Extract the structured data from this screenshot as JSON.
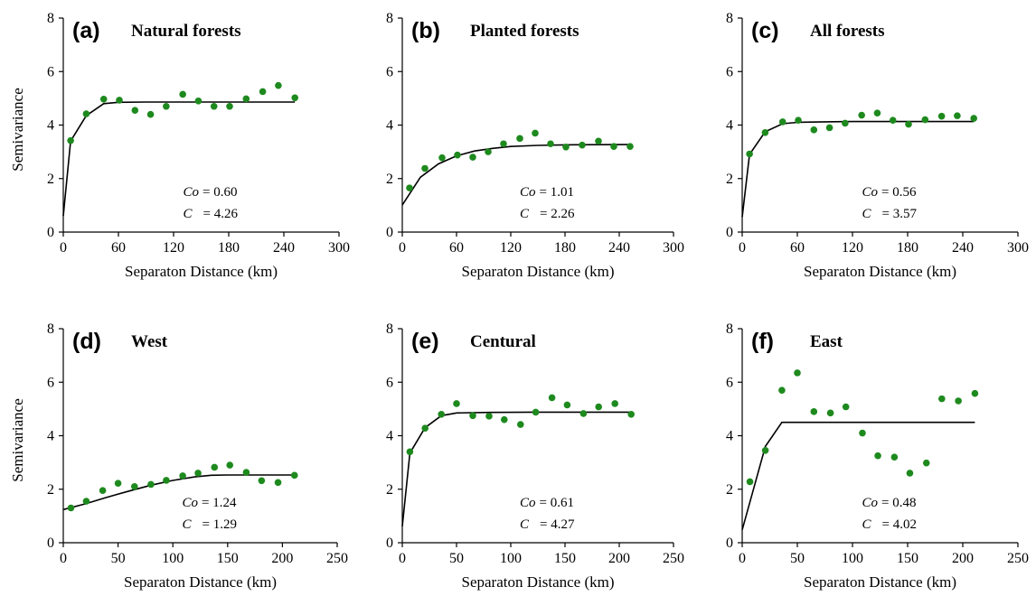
{
  "colors": {
    "points": "#1e8a1e",
    "line": "#000000"
  },
  "chart_data": [
    {
      "type": "scatter",
      "panel_letter": "(a)",
      "title": "Natural forests",
      "xlabel": "Separaton Distance (km)",
      "ylabel": "Semivariance",
      "xlim": [
        0,
        300
      ],
      "ylim": [
        0,
        8
      ],
      "x_ticks": [
        0,
        60,
        120,
        180,
        240,
        300
      ],
      "y_ticks": [
        0,
        2,
        4,
        6,
        8
      ],
      "grid": false,
      "points": {
        "x": [
          8,
          25,
          44,
          61,
          78,
          95,
          112,
          130,
          147,
          164,
          181,
          199,
          217,
          234,
          252
        ],
        "y": [
          3.42,
          4.42,
          4.97,
          4.93,
          4.55,
          4.4,
          4.7,
          5.15,
          4.9,
          4.7,
          4.7,
          4.98,
          5.25,
          5.48,
          5.02
        ]
      },
      "fit_line": {
        "x": [
          0,
          8,
          25,
          44,
          60,
          90,
          120,
          180,
          252
        ],
        "y": [
          0.6,
          3.4,
          4.35,
          4.8,
          4.85,
          4.86,
          4.86,
          4.86,
          4.86
        ]
      },
      "annotation": {
        "co_label": "Co",
        "co_value": "= 0.60",
        "c_label": "C",
        "c_value": "= 4.26"
      }
    },
    {
      "type": "scatter",
      "panel_letter": "(b)",
      "title": "Planted forests",
      "xlabel": "Separaton Distance (km)",
      "ylabel": "",
      "xlim": [
        0,
        300
      ],
      "ylim": [
        0,
        8
      ],
      "x_ticks": [
        0,
        60,
        120,
        180,
        240,
        300
      ],
      "y_ticks": [
        0,
        2,
        4,
        6,
        8
      ],
      "grid": false,
      "points": {
        "x": [
          8,
          25,
          44,
          61,
          78,
          95,
          112,
          130,
          147,
          164,
          181,
          199,
          217,
          234,
          252
        ],
        "y": [
          1.65,
          2.38,
          2.78,
          2.88,
          2.8,
          3.0,
          3.3,
          3.5,
          3.7,
          3.3,
          3.18,
          3.25,
          3.4,
          3.2,
          3.2
        ]
      },
      "fit_line": {
        "x": [
          0,
          20,
          40,
          60,
          80,
          100,
          120,
          150,
          180,
          252
        ],
        "y": [
          1.01,
          2.05,
          2.55,
          2.85,
          3.03,
          3.13,
          3.2,
          3.24,
          3.26,
          3.27
        ]
      },
      "annotation": {
        "co_label": "Co",
        "co_value": "= 1.01",
        "c_label": "C",
        "c_value": "= 2.26"
      }
    },
    {
      "type": "scatter",
      "panel_letter": "(c)",
      "title": "All forests",
      "xlabel": "Separaton Distance (km)",
      "ylabel": "",
      "xlim": [
        0,
        300
      ],
      "ylim": [
        0,
        8
      ],
      "x_ticks": [
        0,
        60,
        120,
        180,
        240,
        300
      ],
      "y_ticks": [
        0,
        2,
        4,
        6,
        8
      ],
      "grid": false,
      "points": {
        "x": [
          8,
          25,
          44,
          61,
          78,
          95,
          112,
          130,
          147,
          164,
          181,
          199,
          217,
          234,
          252
        ],
        "y": [
          2.92,
          3.72,
          4.12,
          4.18,
          3.82,
          3.9,
          4.07,
          4.37,
          4.45,
          4.18,
          4.03,
          4.2,
          4.33,
          4.35,
          4.25
        ]
      },
      "fit_line": {
        "x": [
          0,
          8,
          25,
          44,
          60,
          90,
          120,
          180,
          252
        ],
        "y": [
          0.56,
          2.9,
          3.75,
          4.05,
          4.1,
          4.12,
          4.13,
          4.13,
          4.13
        ]
      },
      "annotation": {
        "co_label": "Co",
        "co_value": "= 0.56",
        "c_label": "C",
        "c_value": "= 3.57"
      }
    },
    {
      "type": "scatter",
      "panel_letter": "(d)",
      "title": "West",
      "xlabel": "Separaton Distance (km)",
      "ylabel": "Semivariance",
      "xlim": [
        0,
        250
      ],
      "ylim": [
        0,
        8
      ],
      "x_ticks": [
        0,
        50,
        100,
        150,
        200,
        250
      ],
      "y_ticks": [
        0,
        2,
        4,
        6,
        8
      ],
      "grid": false,
      "points": {
        "x": [
          7,
          21,
          36,
          50,
          65,
          80,
          94,
          109,
          123,
          138,
          152,
          167,
          181,
          196,
          211
        ],
        "y": [
          1.3,
          1.55,
          1.95,
          2.22,
          2.1,
          2.18,
          2.33,
          2.5,
          2.6,
          2.82,
          2.9,
          2.63,
          2.32,
          2.25,
          2.52
        ]
      },
      "fit_line": {
        "x": [
          0,
          20,
          40,
          60,
          80,
          100,
          120,
          135,
          150,
          211
        ],
        "y": [
          1.24,
          1.45,
          1.7,
          1.93,
          2.15,
          2.33,
          2.46,
          2.52,
          2.53,
          2.53
        ]
      },
      "annotation": {
        "co_label": "Co",
        "co_value": "= 1.24",
        "c_label": "C",
        "c_value": "= 1.29"
      }
    },
    {
      "type": "scatter",
      "panel_letter": "(e)",
      "title": "Centural",
      "xlabel": "Separaton Distance (km)",
      "ylabel": "",
      "xlim": [
        0,
        250
      ],
      "ylim": [
        0,
        8
      ],
      "x_ticks": [
        0,
        50,
        100,
        150,
        200,
        250
      ],
      "y_ticks": [
        0,
        2,
        4,
        6,
        8
      ],
      "grid": false,
      "points": {
        "x": [
          7,
          21,
          36,
          50,
          65,
          80,
          94,
          109,
          123,
          138,
          152,
          167,
          181,
          196,
          211
        ],
        "y": [
          3.4,
          4.28,
          4.8,
          5.2,
          4.75,
          4.73,
          4.6,
          4.42,
          4.88,
          5.42,
          5.15,
          4.83,
          5.08,
          5.2,
          4.8
        ]
      },
      "fit_line": {
        "x": [
          0,
          7,
          21,
          36,
          50,
          80,
          120,
          211
        ],
        "y": [
          0.61,
          3.35,
          4.3,
          4.75,
          4.85,
          4.87,
          4.88,
          4.88
        ]
      },
      "annotation": {
        "co_label": "Co",
        "co_value": "= 0.61",
        "c_label": "C",
        "c_value": "= 4.27"
      }
    },
    {
      "type": "scatter",
      "panel_letter": "(f)",
      "title": "East",
      "xlabel": "Separaton Distance (km)",
      "ylabel": "",
      "xlim": [
        0,
        250
      ],
      "ylim": [
        0,
        8
      ],
      "x_ticks": [
        0,
        50,
        100,
        150,
        200,
        250
      ],
      "y_ticks": [
        0,
        2,
        4,
        6,
        8
      ],
      "grid": false,
      "points": {
        "x": [
          7,
          21,
          36,
          50,
          65,
          80,
          94,
          109,
          123,
          138,
          152,
          167,
          181,
          196,
          211
        ],
        "y": [
          2.28,
          3.45,
          5.7,
          6.35,
          4.9,
          4.85,
          5.08,
          4.1,
          3.25,
          3.2,
          2.6,
          2.98,
          5.38,
          5.3,
          5.58
        ]
      },
      "fit_line": {
        "x": [
          0,
          21,
          36,
          211
        ],
        "y": [
          0.48,
          3.6,
          4.5,
          4.5
        ]
      },
      "annotation": {
        "co_label": "Co",
        "co_value": "= 0.48",
        "c_label": "C",
        "c_value": "= 4.02"
      }
    }
  ]
}
